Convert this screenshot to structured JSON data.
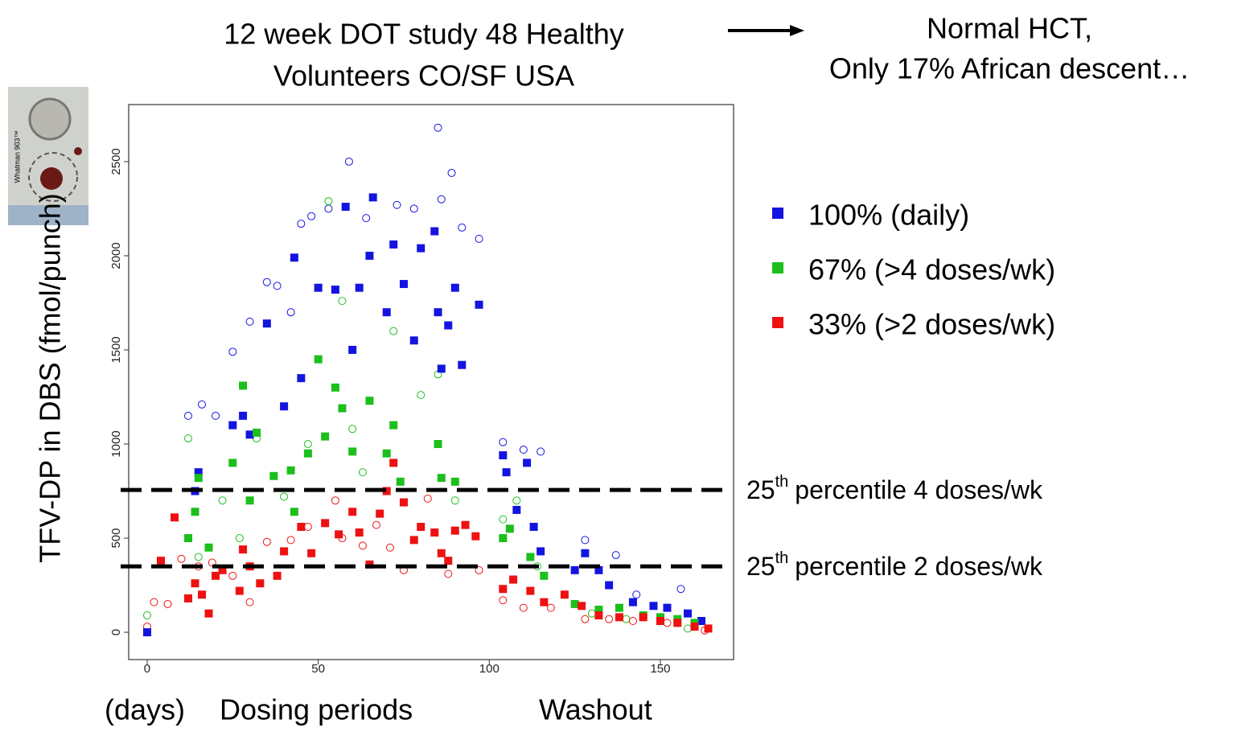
{
  "chart_data": {
    "type": "scatter",
    "title_lines": [
      "12 week DOT study 48 Healthy",
      "Volunteers CO/SF USA"
    ],
    "note_lines": [
      "Normal HCT,",
      "Only 17% African descent…"
    ],
    "y_label": "TFV-DP in DBS (fmol/punch)",
    "x_labels": [
      "(days)",
      "Dosing periods",
      "Washout"
    ],
    "photo_text": "Whatman 903™",
    "xlim": [
      -5.4,
      171.4
    ],
    "ylim": [
      -145,
      2803
    ],
    "xticks": [
      0,
      50,
      100,
      150
    ],
    "yticks": [
      0,
      500,
      1000,
      1500,
      2000,
      2500
    ],
    "reference_lines": [
      {
        "value": 756,
        "number": "25",
        "suffix": "th",
        "text": "percentile 4 doses/wk"
      },
      {
        "value": 350,
        "number": "25",
        "suffix": "th",
        "text": "percentile 2 doses/wk"
      }
    ],
    "series": [
      {
        "name": "100% (daily)",
        "color": "#1414e0",
        "x": [
          0,
          14,
          15,
          25,
          28,
          30,
          35,
          40,
          43,
          45,
          50,
          55,
          58,
          60,
          62,
          65,
          66,
          70,
          72,
          75,
          78,
          80,
          84,
          85,
          86,
          88,
          90,
          92,
          97,
          104,
          105,
          108,
          111,
          113,
          115,
          125,
          128,
          132,
          135,
          142,
          148,
          152,
          158,
          162
        ],
        "values": [
          0,
          750,
          850,
          1100,
          1150,
          1050,
          1640,
          1200,
          1990,
          1350,
          1830,
          1820,
          2260,
          1500,
          1830,
          2000,
          2310,
          1700,
          2060,
          1850,
          1550,
          2040,
          2130,
          1700,
          1400,
          1630,
          1830,
          1420,
          1740,
          940,
          850,
          650,
          900,
          560,
          430,
          330,
          420,
          330,
          250,
          160,
          140,
          130,
          100,
          60
        ],
        "open_x": [
          12,
          16,
          20,
          25,
          30,
          35,
          38,
          42,
          45,
          48,
          53,
          59,
          64,
          73,
          78,
          85,
          86,
          89,
          92,
          97,
          104,
          110,
          115,
          128,
          137,
          143,
          156
        ],
        "open_values": [
          1150,
          1210,
          1150,
          1490,
          1650,
          1860,
          1840,
          1700,
          2170,
          2210,
          2250,
          2500,
          2200,
          2270,
          2250,
          2680,
          2300,
          2440,
          2150,
          2090,
          1010,
          970,
          960,
          490,
          410,
          200,
          230
        ]
      },
      {
        "name": "67% (>4 doses/wk)",
        "color": "#1cbf1c",
        "x": [
          12,
          14,
          15,
          18,
          25,
          28,
          30,
          32,
          37,
          42,
          43,
          47,
          50,
          52,
          55,
          57,
          60,
          65,
          70,
          72,
          74,
          85,
          86,
          90,
          104,
          106,
          112,
          116,
          125,
          132,
          138,
          145,
          150,
          155,
          160
        ],
        "values": [
          500,
          640,
          820,
          450,
          900,
          1310,
          700,
          1060,
          830,
          860,
          640,
          950,
          1450,
          1040,
          1300,
          1190,
          960,
          1230,
          950,
          1100,
          800,
          1000,
          820,
          800,
          500,
          550,
          400,
          300,
          150,
          120,
          130,
          90,
          80,
          70,
          50
        ],
        "open_x": [
          0,
          12,
          15,
          22,
          27,
          32,
          40,
          47,
          53,
          57,
          60,
          63,
          72,
          80,
          85,
          90,
          104,
          108,
          114,
          122,
          130,
          140,
          158
        ],
        "open_values": [
          90,
          1030,
          400,
          700,
          500,
          1030,
          720,
          1000,
          2290,
          1760,
          1080,
          850,
          1600,
          1260,
          1370,
          700,
          600,
          700,
          350,
          200,
          100,
          70,
          20
        ]
      },
      {
        "name": "33% (>2 doses/wk)",
        "color": "#ee1111",
        "x": [
          4,
          8,
          12,
          14,
          16,
          18,
          20,
          22,
          27,
          28,
          30,
          33,
          38,
          40,
          45,
          48,
          52,
          56,
          60,
          62,
          65,
          68,
          70,
          72,
          75,
          78,
          80,
          84,
          86,
          88,
          90,
          93,
          96,
          104,
          107,
          112,
          116,
          122,
          127,
          132,
          138,
          145,
          150,
          155,
          160,
          164
        ],
        "values": [
          380,
          610,
          180,
          260,
          200,
          100,
          300,
          330,
          220,
          440,
          350,
          260,
          300,
          430,
          560,
          420,
          580,
          520,
          640,
          530,
          360,
          630,
          750,
          900,
          690,
          490,
          560,
          530,
          420,
          380,
          540,
          570,
          510,
          230,
          280,
          220,
          160,
          200,
          140,
          90,
          80,
          80,
          60,
          50,
          30,
          20
        ],
        "open_x": [
          0,
          2,
          6,
          10,
          15,
          19,
          25,
          30,
          35,
          42,
          47,
          55,
          57,
          63,
          67,
          71,
          75,
          82,
          88,
          97,
          104,
          110,
          118,
          128,
          135,
          142,
          152,
          163
        ],
        "open_values": [
          30,
          160,
          150,
          390,
          350,
          370,
          300,
          160,
          480,
          490,
          560,
          700,
          500,
          460,
          570,
          450,
          330,
          710,
          310,
          330,
          170,
          130,
          130,
          70,
          70,
          60,
          50,
          10
        ]
      }
    ]
  }
}
